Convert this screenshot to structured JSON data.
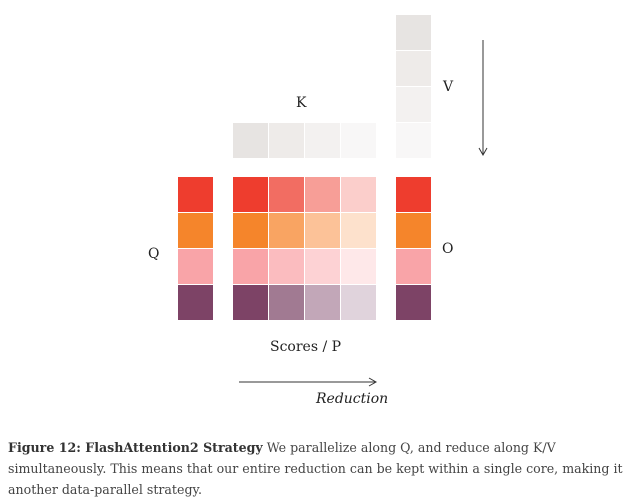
{
  "labels": {
    "k": "K",
    "v": "V",
    "q": "Q",
    "o": "O",
    "scores": "Scores / P",
    "reduction": "Reduction"
  },
  "colors": {
    "k_blocks": [
      "#e7e4e2",
      "#eeebe9",
      "#f3f1f0",
      "#f8f7f7"
    ],
    "v_blocks": [
      "#e7e4e2",
      "#eeebe9",
      "#f3f1f0",
      "#f8f7f7"
    ],
    "q_blocks": [
      "#ee3d2e",
      "#f5852b",
      "#f9a4a8",
      "#7d4366"
    ],
    "o_blocks": [
      "#ee3d2e",
      "#f5852b",
      "#f9a4a8",
      "#7d4366"
    ],
    "scores_grid": [
      [
        "#ee3d2e",
        "#f26d62",
        "#f79e97",
        "#fbcecb"
      ],
      [
        "#f5852b",
        "#f9a462",
        "#fcc298",
        "#fde1cc"
      ],
      [
        "#f9a4a8",
        "#fbbcbf",
        "#fdd2d4",
        "#fee8e9"
      ],
      [
        "#7d4366",
        "#a17a92",
        "#c2a7b8",
        "#e0d3dc"
      ]
    ]
  },
  "caption": {
    "figure_label": "Figure 12: FlashAttention2 Strategy",
    "text": " We parallelize along Q, and reduce along K/V simultaneously. This means that our entire reduction can be kept within a single core, making it another data-parallel strategy."
  }
}
